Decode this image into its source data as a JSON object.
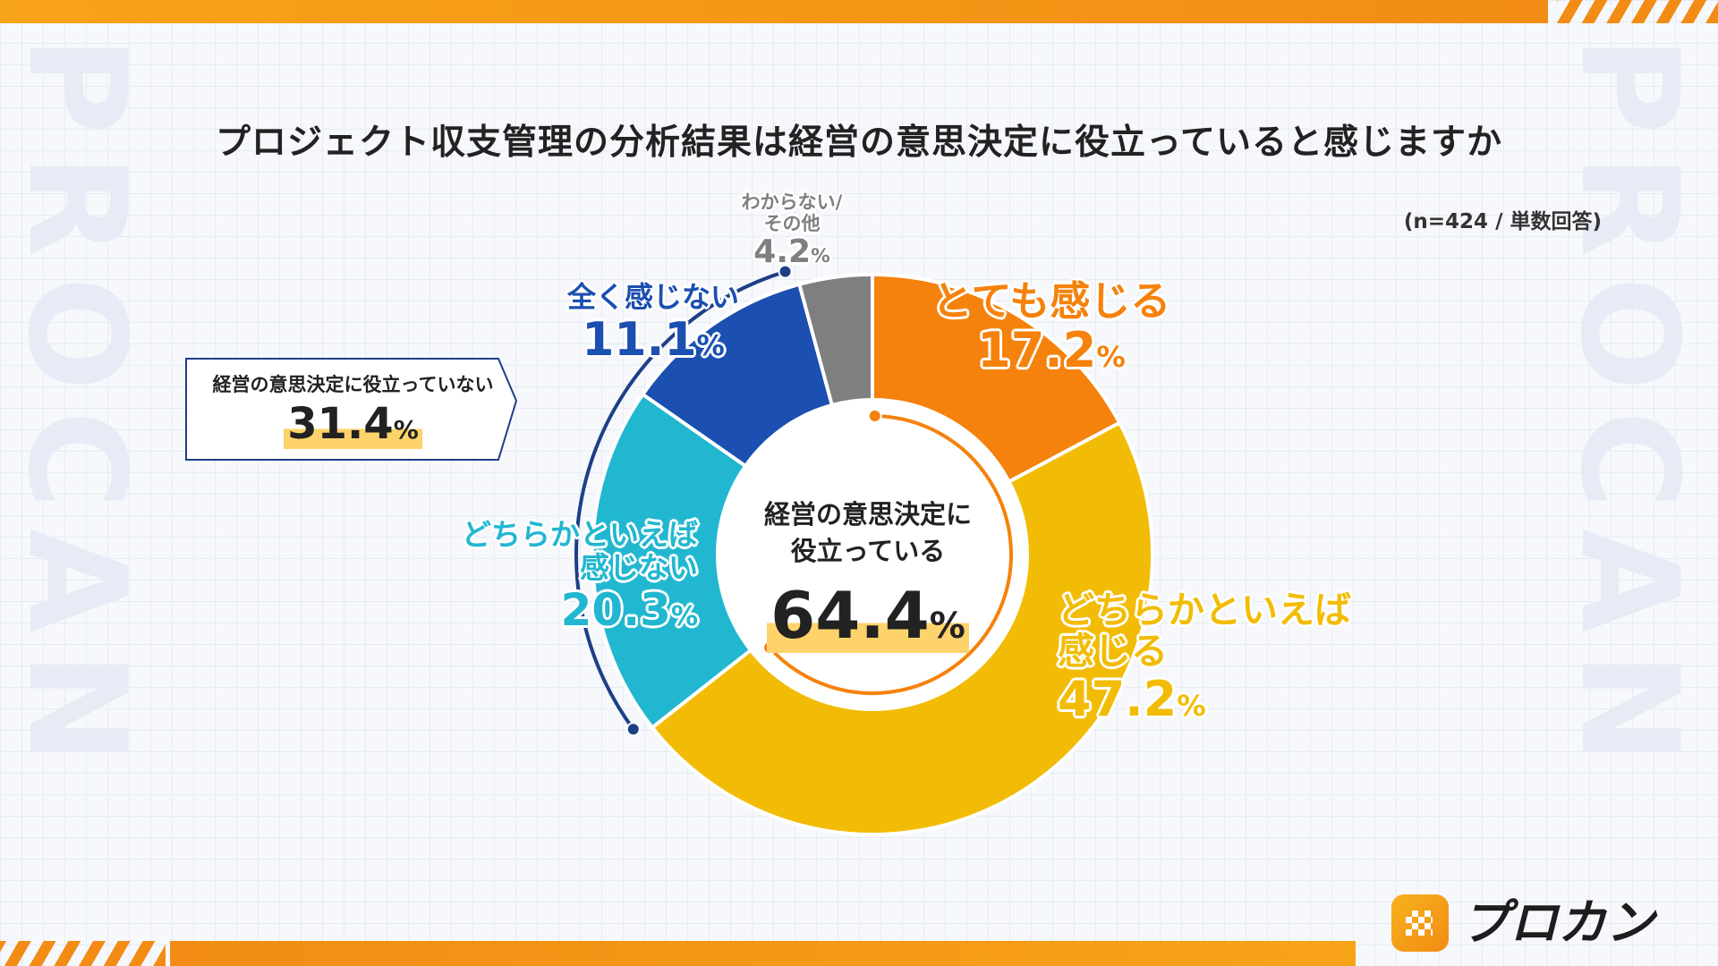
{
  "title": "プロジェクト収支管理の分析結果は経営の意思決定に役立っていると感じますか",
  "note": "(n=424 / 単数回答)",
  "watermark": "PROCAN",
  "brand": {
    "name": "プロカン"
  },
  "colors": {
    "orange": "#f5820c",
    "yellow": "#f2bc06",
    "cyan": "#22b7d0",
    "blue": "#1b4fb0",
    "gray": "#7f7f7f",
    "navy": "#1d3f87"
  },
  "summary": {
    "positive": {
      "label_line1": "経営の意思決定に",
      "label_line2": "役立っている",
      "value": "64.4",
      "unit": "%"
    },
    "negative": {
      "label": "経営の意思決定に役立っていない",
      "value": "31.4",
      "unit": "%"
    }
  },
  "chart_data": {
    "type": "pie",
    "title": "プロジェクト収支管理の分析結果は経営の意思決定に役立っていると感じますか",
    "series": [
      {
        "name": "とても感じる",
        "label_lines": [
          "とても感じる"
        ],
        "value": 17.2,
        "display": "17.2",
        "color": "#f5820c"
      },
      {
        "name": "どちらかといえば感じる",
        "label_lines": [
          "どちらかといえば",
          "感じる"
        ],
        "value": 47.2,
        "display": "47.2",
        "color": "#f2bc06"
      },
      {
        "name": "どちらかといえば感じない",
        "label_lines": [
          "どちらかといえば",
          "感じない"
        ],
        "value": 20.3,
        "display": "20.3",
        "color": "#22b7d0"
      },
      {
        "name": "全く感じない",
        "label_lines": [
          "全く感じない"
        ],
        "value": 11.1,
        "display": "11.1",
        "color": "#1b4fb0"
      },
      {
        "name": "わからない/その他",
        "label_lines": [
          "わからない/",
          "その他"
        ],
        "value": 4.2,
        "display": "4.2",
        "color": "#7f7f7f"
      }
    ],
    "unit": "%"
  }
}
